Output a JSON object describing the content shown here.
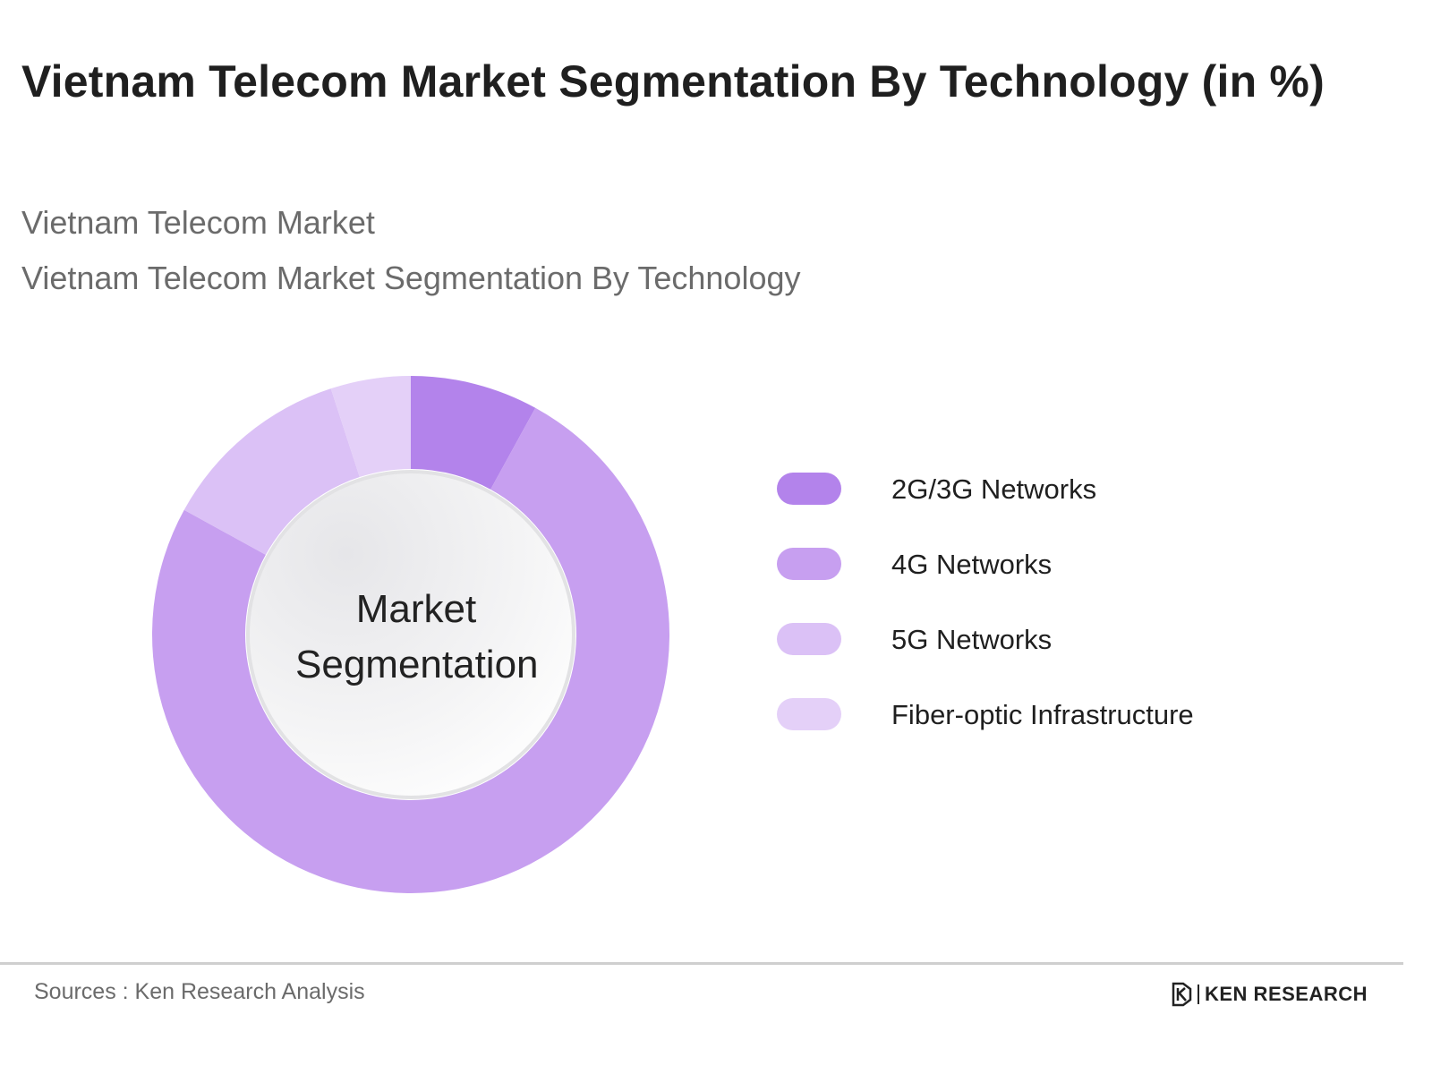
{
  "header": {
    "title": "Vietnam Telecom Market Segmentation By Technology (in %)",
    "subtitle1": "Vietnam Telecom Market",
    "subtitle2": "Vietnam Telecom Market Segmentation By Technology"
  },
  "chart_data": {
    "type": "pie",
    "variant": "donut",
    "center_label_line1": "Market",
    "center_label_line2": "Segmentation",
    "categories": [
      "2G/3G Networks",
      "4G Networks",
      "5G Networks",
      "Fiber-optic Infrastructure"
    ],
    "values": [
      8,
      75,
      12,
      5
    ],
    "colors": [
      "#b383eb",
      "#c79ff0",
      "#dbc1f6",
      "#e4d0f8"
    ],
    "legend_position": "right",
    "start_angle": "top, clockwise"
  },
  "footer": {
    "source": "Sources : Ken Research Analysis",
    "logo_text": "KEN RESEARCH"
  }
}
